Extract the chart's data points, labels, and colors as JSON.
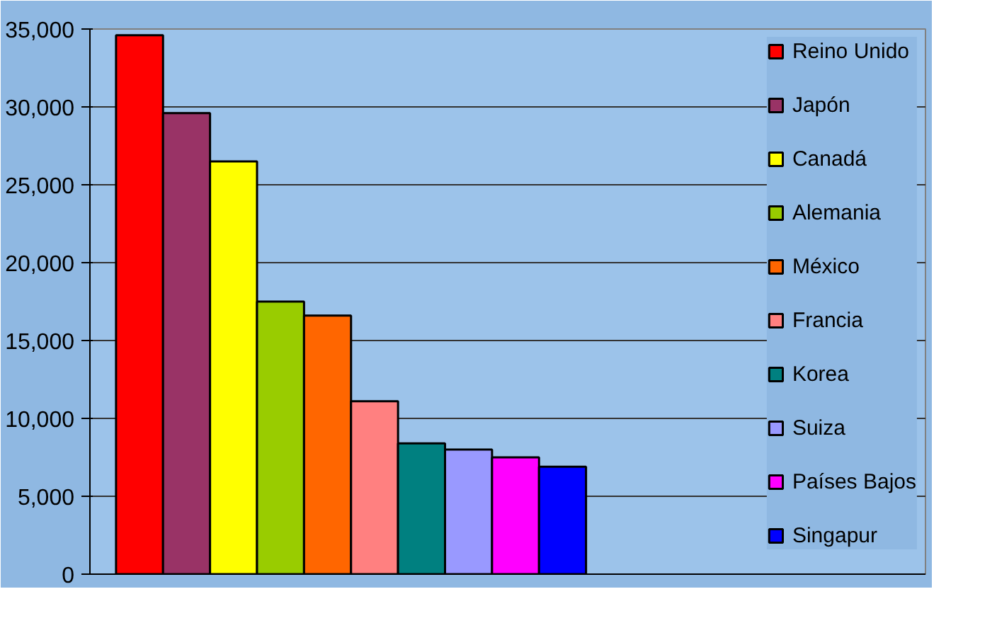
{
  "chart_data": {
    "type": "bar",
    "categories": [
      null
    ],
    "series": [
      {
        "name": "Reino Unido",
        "color": "#ff0000",
        "values": [
          34600
        ]
      },
      {
        "name": "Japón",
        "color": "#993366",
        "values": [
          29600
        ]
      },
      {
        "name": "Canadá",
        "color": "#ffff00",
        "values": [
          26500
        ]
      },
      {
        "name": "Alemania",
        "color": "#99cc00",
        "values": [
          17500
        ]
      },
      {
        "name": "México",
        "color": "#ff6600",
        "values": [
          16600
        ]
      },
      {
        "name": "Francia",
        "color": "#ff8080",
        "values": [
          11100
        ]
      },
      {
        "name": "Korea",
        "color": "#008080",
        "values": [
          8400
        ]
      },
      {
        "name": "Suiza",
        "color": "#9999ff",
        "values": [
          8000
        ]
      },
      {
        "name": "Países Bajos",
        "color": "#ff00ff",
        "values": [
          7500
        ]
      },
      {
        "name": "Singapur",
        "color": "#0000ff",
        "values": [
          6900
        ]
      }
    ],
    "ylim": [
      0,
      35000
    ],
    "yticks": [
      0,
      {
        "value": 5000,
        "label": "5,000"
      },
      {
        "value": 10000,
        "label": "10,000"
      },
      {
        "value": 15000,
        "label": "15,000"
      },
      {
        "value": 20000,
        "label": "20,000"
      },
      {
        "value": 25000,
        "label": "25,000"
      },
      {
        "value": 30000,
        "label": "30,000"
      },
      {
        "value": 35000,
        "label": "35,000"
      }
    ],
    "grid": "y",
    "legend": "right",
    "tick_labels": "y"
  }
}
